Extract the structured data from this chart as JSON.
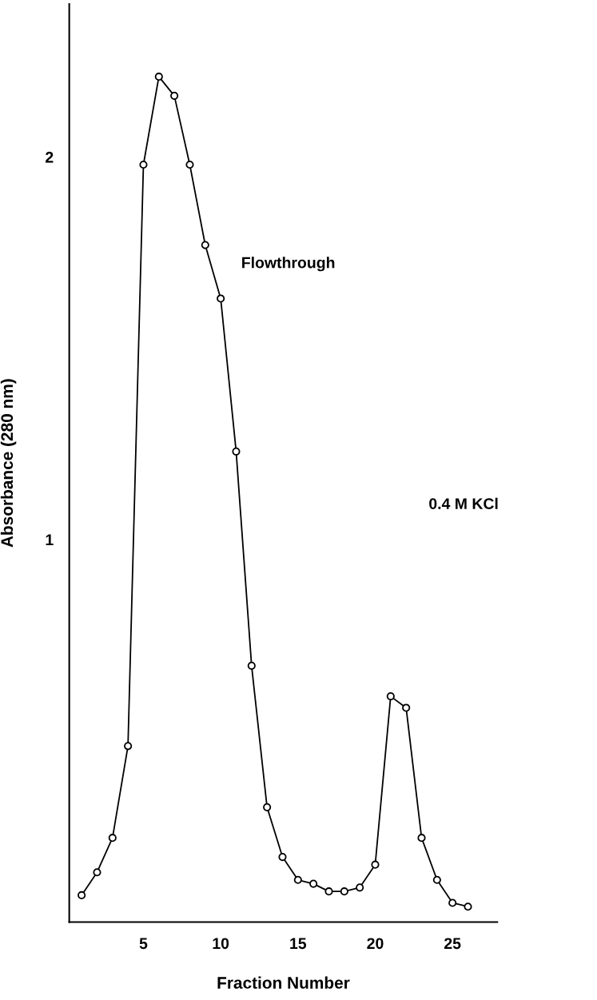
{
  "chart_data": {
    "type": "line",
    "xlabel": "Fraction Number",
    "ylabel": "Absorbance (280 nm)",
    "x": [
      1,
      2,
      3,
      4,
      5,
      6,
      7,
      8,
      9,
      10,
      11,
      12,
      13,
      14,
      15,
      16,
      17,
      18,
      19,
      20,
      21,
      22,
      23,
      24,
      25,
      26
    ],
    "values": [
      0.07,
      0.13,
      0.22,
      0.46,
      1.98,
      2.21,
      2.16,
      1.98,
      1.77,
      1.63,
      1.23,
      0.67,
      0.3,
      0.17,
      0.11,
      0.1,
      0.08,
      0.08,
      0.09,
      0.15,
      0.59,
      0.56,
      0.22,
      0.11,
      0.05,
      0.04
    ],
    "color": "#000000",
    "marker": "circle",
    "line_style": "solid",
    "xlim": [
      0.2,
      27.9
    ],
    "ylim": [
      0,
      2.4
    ],
    "xticks": [
      5,
      10,
      15,
      20,
      25
    ],
    "yticks": [
      1,
      2
    ],
    "grid": false,
    "annotations": [
      "Flowthrough",
      "0.4 M KCl"
    ]
  }
}
